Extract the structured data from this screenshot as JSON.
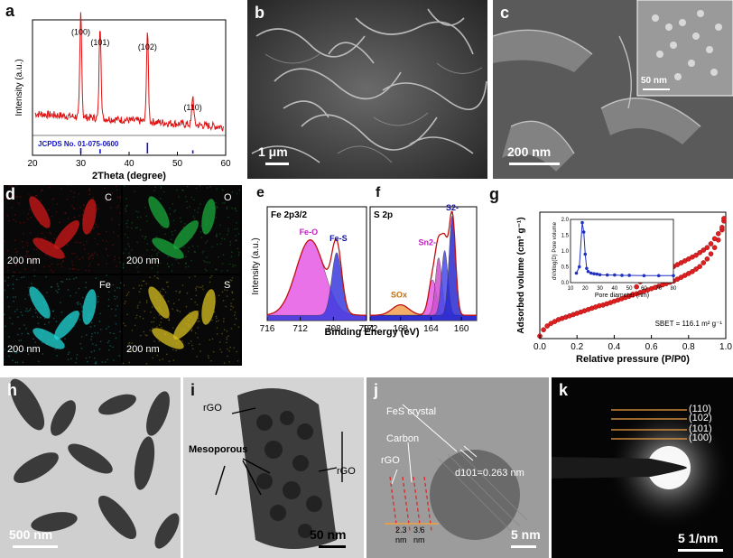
{
  "panels": {
    "a": {
      "label": "a"
    },
    "b": {
      "label": "b",
      "scale": "1 μm"
    },
    "c": {
      "label": "c",
      "scale": "200 nm",
      "inset_scale": "50 nm"
    },
    "d": {
      "label": "d",
      "tiles": [
        {
          "element": "C",
          "scale": "200 nm",
          "color": "#d01818"
        },
        {
          "element": "O",
          "scale": "200 nm",
          "color": "#1aa83a"
        },
        {
          "element": "Fe",
          "scale": "200 nm",
          "color": "#20d8d8"
        },
        {
          "element": "S",
          "scale": "200 nm",
          "color": "#d8c020"
        }
      ]
    },
    "e": {
      "label": "e",
      "title": "Fe 2p3/2",
      "peak1": "Fe-O",
      "peak2": "Fe-S"
    },
    "f": {
      "label": "f",
      "title": "S 2p",
      "peakA": "S2-",
      "peakB": "Sn2-",
      "peakC": "SOx"
    },
    "ef_shared": {
      "xlabel": "Binding Energy (eV)",
      "ylabel": "Intensity (a.u.)"
    },
    "g": {
      "label": "g",
      "sbet": "SBET = 116.1 m² g⁻¹"
    },
    "h": {
      "label": "h",
      "scale": "500 nm"
    },
    "i": {
      "label": "i",
      "scale": "50 nm",
      "rgo1": "rGO",
      "rgo2": "rGO",
      "meso": "Mesoporous"
    },
    "j": {
      "label": "j",
      "scale": "5 nm",
      "crystal": "FeS crystal",
      "carbon": "Carbon",
      "rgo": "rGO",
      "dspacing": "d101=0.263 nm",
      "s1": "2.3",
      "s2": "3.6",
      "u1": "nm",
      "u2": "nm"
    },
    "k": {
      "label": "k",
      "scale": "5 1/nm",
      "rings": [
        "(110)",
        "(102)",
        "(101)",
        "(100)"
      ]
    }
  },
  "chart_data": [
    {
      "type": "line",
      "title": "",
      "xlabel": "2Theta (degree)",
      "ylabel": "Intensity (a.u.)",
      "xlim": [
        20,
        60
      ],
      "xticks": [
        20,
        30,
        40,
        50,
        60
      ],
      "series": [
        {
          "name": "",
          "color": "#e01010",
          "peaks": [
            {
              "x": 30.0,
              "h": 0.93
            },
            {
              "x": 34.0,
              "h": 0.84
            },
            {
              "x": 43.8,
              "h": 0.8
            },
            {
              "x": 53.2,
              "h": 0.26
            }
          ]
        }
      ],
      "peak_labels": [
        {
          "x": 30.0,
          "text": "(100)"
        },
        {
          "x": 34.0,
          "text": "(101)"
        },
        {
          "x": 43.8,
          "text": "(102)"
        },
        {
          "x": 53.2,
          "text": "(110)"
        }
      ],
      "reference": {
        "name": "JCPDS No. 01-075-0600",
        "color": "#1010c8",
        "lines": [
          {
            "x": 30.0,
            "h": 0.5
          },
          {
            "x": 34.0,
            "h": 0.4
          },
          {
            "x": 43.8,
            "h": 1.0
          },
          {
            "x": 53.2,
            "h": 0.3
          }
        ]
      }
    },
    {
      "type": "area",
      "xlim": [
        716,
        704
      ],
      "xticks": [
        716,
        712,
        708,
        704
      ],
      "components": [
        {
          "name": "Fe-O",
          "center": 710.8,
          "fwhm": 4.0,
          "h": 0.72,
          "color": "#e65ae6"
        },
        {
          "name": "Fe-S",
          "center": 707.6,
          "fwhm": 1.4,
          "h": 0.6,
          "color": "#3a3ae0"
        }
      ]
    },
    {
      "type": "area",
      "xlim": [
        172,
        158
      ],
      "xticks": [
        172,
        168,
        164,
        160
      ],
      "components": [
        {
          "name": "SOx",
          "center": 168.0,
          "fwhm": 2.6,
          "h": 0.1,
          "color": "#f0a050"
        },
        {
          "name": "Sn2-",
          "center": 163.8,
          "fwhm": 1.2,
          "h": 0.34,
          "color": "#e65ae6"
        },
        {
          "name": "Sn2-b",
          "center": 163.0,
          "fwhm": 1.0,
          "h": 0.55,
          "color": "#d050d0"
        },
        {
          "name": "S2-",
          "center": 162.2,
          "fwhm": 1.0,
          "h": 0.62,
          "color": "#4848e8"
        },
        {
          "name": "S2-b",
          "center": 161.2,
          "fwhm": 1.0,
          "h": 0.95,
          "color": "#2a2ad0"
        }
      ]
    },
    {
      "type": "scatter",
      "xlabel": "Relative pressure (P/P0)",
      "ylabel": "Adsorbed volume (cm³ g⁻¹)",
      "xlim": [
        0,
        1.0
      ],
      "xticks": [
        0.0,
        0.2,
        0.4,
        0.6,
        0.8,
        1.0
      ],
      "ylim": [
        0,
        1
      ],
      "series": [
        {
          "name": "adsorption",
          "x": [
            0.0,
            0.02,
            0.04,
            0.06,
            0.08,
            0.1,
            0.12,
            0.14,
            0.16,
            0.18,
            0.2,
            0.22,
            0.24,
            0.26,
            0.28,
            0.3,
            0.32,
            0.34,
            0.36,
            0.38,
            0.4,
            0.42,
            0.44,
            0.46,
            0.48,
            0.5,
            0.52,
            0.54,
            0.56,
            0.58,
            0.6,
            0.62,
            0.64,
            0.66,
            0.68,
            0.7,
            0.72,
            0.74,
            0.76,
            0.78,
            0.8,
            0.82,
            0.84,
            0.86,
            0.88,
            0.9,
            0.92,
            0.94,
            0.96,
            0.98,
            0.99
          ],
          "y": [
            0.02,
            0.07,
            0.1,
            0.12,
            0.135,
            0.15,
            0.16,
            0.17,
            0.18,
            0.19,
            0.2,
            0.21,
            0.22,
            0.23,
            0.24,
            0.25,
            0.26,
            0.265,
            0.275,
            0.285,
            0.295,
            0.305,
            0.315,
            0.325,
            0.335,
            0.345,
            0.355,
            0.365,
            0.375,
            0.385,
            0.395,
            0.405,
            0.415,
            0.425,
            0.435,
            0.445,
            0.455,
            0.47,
            0.485,
            0.5,
            0.515,
            0.53,
            0.55,
            0.57,
            0.6,
            0.63,
            0.67,
            0.72,
            0.78,
            0.86,
            0.93
          ]
        },
        {
          "name": "desorption",
          "x": [
            0.5,
            0.52,
            0.54,
            0.56,
            0.58,
            0.6,
            0.62,
            0.64,
            0.66,
            0.68,
            0.7,
            0.72,
            0.74,
            0.76,
            0.78,
            0.8,
            0.82,
            0.84,
            0.86,
            0.88,
            0.9,
            0.92,
            0.94,
            0.96,
            0.98,
            0.99
          ],
          "y": [
            0.35,
            0.41,
            0.45,
            0.47,
            0.485,
            0.5,
            0.51,
            0.52,
            0.53,
            0.545,
            0.56,
            0.57,
            0.585,
            0.6,
            0.615,
            0.63,
            0.645,
            0.66,
            0.68,
            0.7,
            0.72,
            0.75,
            0.79,
            0.83,
            0.88,
            0.95
          ]
        }
      ],
      "inset": {
        "xlabel": "Pore diameter (nm)",
        "ylabel": "dV/dlog(D) Pore volume",
        "xticks": [
          10,
          20,
          30,
          40,
          50,
          60,
          70,
          80
        ],
        "yticks": [
          0.0,
          0.5,
          1.0,
          1.5,
          2.0
        ],
        "x": [
          14,
          16,
          18,
          19,
          20,
          21,
          22,
          24,
          26,
          28,
          30,
          35,
          40,
          45,
          50,
          60,
          70,
          80
        ],
        "y": [
          0.3,
          0.5,
          1.9,
          1.6,
          0.9,
          0.45,
          0.35,
          0.3,
          0.28,
          0.27,
          0.25,
          0.24,
          0.24,
          0.23,
          0.23,
          0.22,
          0.22,
          0.22
        ]
      }
    }
  ]
}
